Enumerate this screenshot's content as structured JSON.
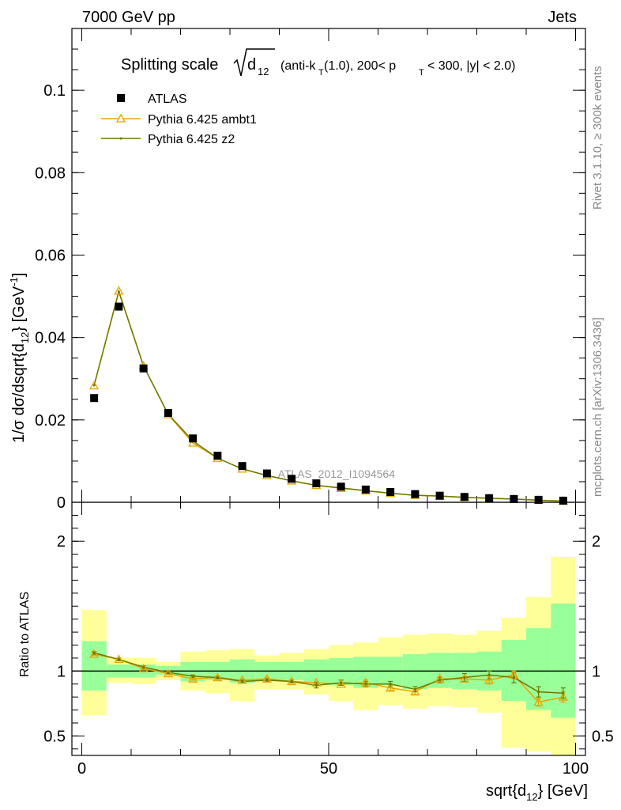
{
  "header": {
    "left": "7000 GeV pp",
    "right": "Jets"
  },
  "side_labels": {
    "rivet": "Rivet 3.1.10, ≥ 300k events",
    "mcplots": "mcplots.cern.ch [arXiv:1306.3436]"
  },
  "watermark": "ATLAS_2012_I1094564",
  "colors": {
    "atlas": "#000000",
    "ambt1": "#e8a400",
    "z2": "#6b7a00",
    "green_band": "#99ff99",
    "yellow_band": "#ffff99"
  },
  "chart_data": [
    {
      "type": "scatter",
      "title": "Splitting scale √d12 (anti-kT(1.0), 200< pT < 300, |y| < 2.0)",
      "title_parts": {
        "prefix": "Splitting scale",
        "var": "d",
        "var_sub": "12",
        "mid1": "(anti-k",
        "mid1_sub": "T",
        "mid2": "(1.0), 200< p",
        "mid2_sub": "T",
        "mid3": "< 300, |y| < 2.0)"
      },
      "ylabel": "1/σ dσ/dsqrt{d12} [GeV-1]",
      "ylabel_parts": {
        "a": "1/σ dσ/dsqrt{d",
        "sub": "12",
        "b": "} [GeV",
        "sup": "-1",
        "c": "]"
      },
      "xlim": [
        -2,
        102
      ],
      "ylim": [
        0,
        0.115
      ],
      "yticks": [
        {
          "v": 0,
          "label": "0"
        },
        {
          "v": 0.02,
          "label": "0.02"
        },
        {
          "v": 0.04,
          "label": "0.04"
        },
        {
          "v": 0.06,
          "label": "0.06"
        },
        {
          "v": 0.08,
          "label": "0.08"
        },
        {
          "v": 0.1,
          "label": "0.1"
        }
      ],
      "x": [
        2.5,
        7.5,
        12.5,
        17.5,
        22.5,
        27.5,
        32.5,
        37.5,
        42.5,
        47.5,
        52.5,
        57.5,
        62.5,
        67.5,
        72.5,
        77.5,
        82.5,
        87.5,
        92.5,
        97.5
      ],
      "series": [
        {
          "name": "ATLAS",
          "values": [
            0.0253,
            0.0475,
            0.0325,
            0.0217,
            0.0155,
            0.0113,
            0.0088,
            0.007,
            0.0057,
            0.0046,
            0.0038,
            0.0031,
            0.0025,
            0.002,
            0.0016,
            0.0013,
            0.001,
            0.0008,
            0.0006,
            0.0004
          ]
        },
        {
          "name": "Pythia 6.425 ambt1",
          "values": [
            0.0283,
            0.0513,
            0.0331,
            0.0213,
            0.0144,
            0.0107,
            0.0081,
            0.0065,
            0.0052,
            0.0041,
            0.0034,
            0.0028,
            0.0022,
            0.0017,
            0.0015,
            0.0012,
            0.0009,
            0.0008,
            0.0005,
            0.0003
          ]
        },
        {
          "name": "Pythia 6.425 z2",
          "values": [
            0.0284,
            0.0511,
            0.0331,
            0.0214,
            0.0149,
            0.0107,
            0.0081,
            0.0065,
            0.0052,
            0.0041,
            0.0035,
            0.0028,
            0.0022,
            0.0017,
            0.0015,
            0.0012,
            0.001,
            0.0008,
            0.0005,
            0.0003
          ]
        }
      ],
      "legend": [
        "ATLAS",
        "Pythia 6.425 ambt1",
        "Pythia 6.425 z2"
      ],
      "legend_position": "top-left"
    },
    {
      "type": "line",
      "ylabel": "Ratio to ATLAS",
      "xlabel": "sqrt{d12} [GeV]",
      "xlabel_parts": {
        "a": "sqrt{d",
        "sub": "12",
        "b": "} [GeV]"
      },
      "xlim": [
        -2,
        102
      ],
      "ylim": [
        0.35,
        2.3
      ],
      "xticks": [
        {
          "v": 0,
          "label": "0"
        },
        {
          "v": 50,
          "label": "50"
        },
        {
          "v": 100,
          "label": "100"
        }
      ],
      "yticks": [
        {
          "v": 0.5,
          "label": "0.5"
        },
        {
          "v": 1,
          "label": "1"
        },
        {
          "v": 2,
          "label": "2"
        }
      ],
      "bins": [
        [
          0,
          5
        ],
        [
          5,
          10
        ],
        [
          10,
          15
        ],
        [
          15,
          20
        ],
        [
          20,
          25
        ],
        [
          25,
          30
        ],
        [
          30,
          35
        ],
        [
          35,
          40
        ],
        [
          40,
          45
        ],
        [
          45,
          50
        ],
        [
          50,
          55
        ],
        [
          55,
          60
        ],
        [
          60,
          65
        ],
        [
          65,
          70
        ],
        [
          70,
          75
        ],
        [
          75,
          80
        ],
        [
          80,
          85
        ],
        [
          85,
          90
        ],
        [
          90,
          95
        ],
        [
          95,
          100
        ]
      ],
      "band_yellow": [
        [
          0.66,
          1.47
        ],
        [
          0.91,
          1.1
        ],
        [
          0.9,
          1.1
        ],
        [
          0.93,
          1.07
        ],
        [
          0.85,
          1.15
        ],
        [
          0.83,
          1.16
        ],
        [
          0.77,
          1.17
        ],
        [
          0.86,
          1.12
        ],
        [
          0.86,
          1.14
        ],
        [
          0.82,
          1.17
        ],
        [
          0.77,
          1.2
        ],
        [
          0.7,
          1.22
        ],
        [
          0.74,
          1.26
        ],
        [
          0.71,
          1.28
        ],
        [
          0.73,
          1.29
        ],
        [
          0.72,
          1.28
        ],
        [
          0.68,
          1.31
        ],
        [
          0.41,
          1.41
        ],
        [
          0.38,
          1.57
        ],
        [
          0.33,
          1.88
        ]
      ],
      "band_green": [
        [
          0.85,
          1.23
        ],
        [
          0.95,
          1.05
        ],
        [
          0.95,
          1.05
        ],
        [
          0.97,
          1.04
        ],
        [
          0.92,
          1.07
        ],
        [
          0.93,
          1.07
        ],
        [
          0.91,
          1.09
        ],
        [
          0.93,
          1.07
        ],
        [
          0.93,
          1.07
        ],
        [
          0.91,
          1.09
        ],
        [
          0.89,
          1.1
        ],
        [
          0.87,
          1.11
        ],
        [
          0.89,
          1.11
        ],
        [
          0.86,
          1.13
        ],
        [
          0.87,
          1.14
        ],
        [
          0.86,
          1.14
        ],
        [
          0.85,
          1.15
        ],
        [
          0.77,
          1.24
        ],
        [
          0.7,
          1.33
        ],
        [
          0.64,
          1.52
        ]
      ],
      "x": [
        2.5,
        7.5,
        12.5,
        17.5,
        22.5,
        27.5,
        32.5,
        37.5,
        42.5,
        47.5,
        52.5,
        57.5,
        62.5,
        67.5,
        72.5,
        77.5,
        82.5,
        87.5,
        92.5,
        97.5
      ],
      "series": [
        {
          "name": "Pythia 6.425 ambt1",
          "values": [
            1.13,
            1.09,
            1.02,
            0.98,
            0.94,
            0.95,
            0.93,
            0.94,
            0.92,
            0.91,
            0.9,
            0.91,
            0.87,
            0.84,
            0.94,
            0.94,
            0.93,
            0.97,
            0.76,
            0.8
          ],
          "err": [
            0.01,
            0.01,
            0.01,
            0.01,
            0.01,
            0.01,
            0.01,
            0.01,
            0.01,
            0.01,
            0.01,
            0.02,
            0.02,
            0.02,
            0.02,
            0.02,
            0.03,
            0.03,
            0.03,
            0.04
          ]
        },
        {
          "name": "Pythia 6.425 z2",
          "values": [
            1.14,
            1.09,
            1.03,
            0.99,
            0.96,
            0.95,
            0.92,
            0.93,
            0.92,
            0.89,
            0.91,
            0.9,
            0.9,
            0.86,
            0.93,
            0.95,
            0.97,
            0.95,
            0.84,
            0.83
          ],
          "err": [
            0.01,
            0.01,
            0.01,
            0.01,
            0.01,
            0.01,
            0.01,
            0.01,
            0.01,
            0.02,
            0.02,
            0.02,
            0.02,
            0.02,
            0.02,
            0.03,
            0.03,
            0.04,
            0.04,
            0.04
          ]
        }
      ]
    }
  ]
}
